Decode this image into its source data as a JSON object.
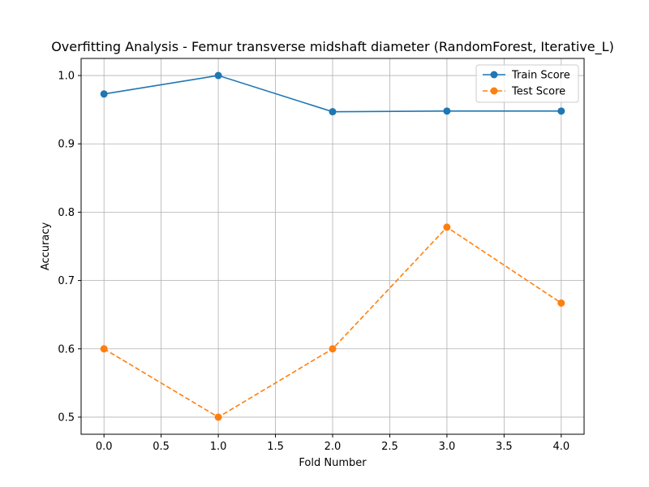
{
  "chart_data": {
    "type": "line",
    "title": "Overfitting Analysis - Femur transverse midshaft diameter (RandomForest, Iterative_L)",
    "xlabel": "Fold Number",
    "ylabel": "Accuracy",
    "xlim": [
      -0.2,
      4.2
    ],
    "ylim": [
      0.475,
      1.025
    ],
    "xticks": [
      0.0,
      0.5,
      1.0,
      1.5,
      2.0,
      2.5,
      3.0,
      3.5,
      4.0
    ],
    "xtick_labels": [
      "0.0",
      "0.5",
      "1.0",
      "1.5",
      "2.0",
      "2.5",
      "3.0",
      "3.5",
      "4.0"
    ],
    "yticks": [
      0.5,
      0.6,
      0.7,
      0.8,
      0.9,
      1.0
    ],
    "ytick_labels": [
      "0.5",
      "0.6",
      "0.7",
      "0.8",
      "0.9",
      "1.0"
    ],
    "grid": true,
    "legend_position": "top-right",
    "x": [
      0,
      1,
      2,
      3,
      4
    ],
    "series": [
      {
        "name": "Train Score",
        "values": [
          0.973,
          1.0,
          0.947,
          0.948,
          0.948
        ],
        "color": "#1f77b4",
        "line_style": "solid",
        "marker": "circle"
      },
      {
        "name": "Test Score",
        "values": [
          0.6,
          0.5,
          0.6,
          0.778,
          0.667
        ],
        "color": "#ff7f0e",
        "line_style": "dashed",
        "marker": "circle"
      }
    ]
  }
}
